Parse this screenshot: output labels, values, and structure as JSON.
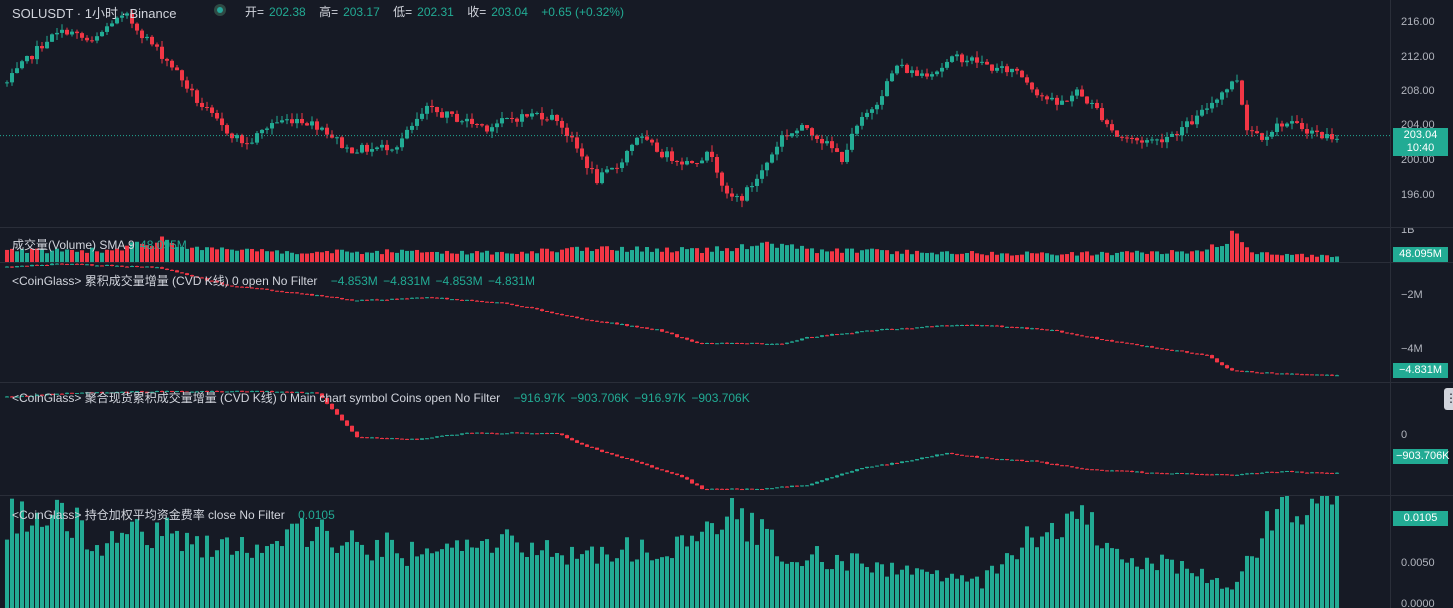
{
  "main": {
    "symbol_title": "SOLUSDT · 1小时 · Binance",
    "ohlc": {
      "open_label": "开=",
      "open": "202.38",
      "high_label": "高=",
      "high": "203.17",
      "low_label": "低=",
      "low": "202.31",
      "close_label": "收=",
      "close": "203.04",
      "change": "+0.65 (+0.32%)"
    },
    "price_ticks": [
      "216.00",
      "212.00",
      "208.00",
      "204.00",
      "200.00",
      "196.00"
    ],
    "last_price_tag": "203.04",
    "countdown_tag": "10:40"
  },
  "volume": {
    "title": "成交量(Volume) SMA 9",
    "value": "48.095M",
    "axis_tick": "1B",
    "tag": "48.095M"
  },
  "cvd_futures": {
    "title": "<CoinGlass> 累积成交量增量 (CVD K线) 0 open No Filter",
    "values": [
      "−4.853M",
      "−4.831M",
      "−4.853M",
      "−4.831M"
    ],
    "axis_ticks": [
      "−2M",
      "−4M"
    ],
    "tag": "−4.831M"
  },
  "cvd_spot": {
    "title": "<CoinGlass> 聚合现货累积成交量增量 (CVD K线) 0 Main chart symbol Coins open No Filter",
    "values": [
      "−916.97K",
      "−903.706K",
      "−916.97K",
      "−903.706K"
    ],
    "axis_ticks": [
      "0"
    ],
    "tag": "−903.706K"
  },
  "funding": {
    "title": "<CoinGlass> 持仓加权平均资金费率 close No Filter",
    "value": "0.0105",
    "axis_ticks": [
      "0.0050",
      "0.0000"
    ],
    "tag": "0.0105"
  },
  "colors": {
    "up": "#22AB94",
    "down": "#F23645",
    "background": "#161A25"
  },
  "chart_data": [
    {
      "type": "candlestick",
      "title": "SOLUSDT · 1小时 · Binance",
      "ylim": [
        193,
        218
      ],
      "ticks": [
        216,
        212,
        208,
        204,
        200,
        196
      ],
      "last": 203.04,
      "anchors": [
        [
          0,
          209
        ],
        [
          3,
          211
        ],
        [
          8,
          214
        ],
        [
          12,
          215
        ],
        [
          17,
          213.5
        ],
        [
          21,
          216
        ],
        [
          24,
          216.5
        ],
        [
          28,
          214
        ],
        [
          33,
          211
        ],
        [
          38,
          207
        ],
        [
          43,
          204
        ],
        [
          48,
          202
        ],
        [
          53,
          204.5
        ],
        [
          58,
          205
        ],
        [
          63,
          204
        ],
        [
          68,
          201.5
        ],
        [
          73,
          201.5
        ],
        [
          78,
          202
        ],
        [
          84,
          206
        ],
        [
          90,
          205
        ],
        [
          96,
          204
        ],
        [
          101,
          205
        ],
        [
          106,
          205.5
        ],
        [
          110,
          205
        ],
        [
          114,
          201.5
        ],
        [
          118,
          198
        ],
        [
          122,
          199.5
        ],
        [
          126,
          203
        ],
        [
          131,
          201
        ],
        [
          136,
          200
        ],
        [
          141,
          201
        ],
        [
          144,
          196
        ],
        [
          147,
          196
        ],
        [
          151,
          199
        ],
        [
          155,
          203
        ],
        [
          160,
          204
        ],
        [
          164,
          202
        ],
        [
          167,
          200.5
        ],
        [
          170,
          204
        ],
        [
          174,
          207
        ],
        [
          178,
          211
        ],
        [
          182,
          210
        ],
        [
          186,
          210.5
        ],
        [
          190,
          212
        ],
        [
          194,
          211.5
        ],
        [
          198,
          210.5
        ],
        [
          202,
          210.5
        ],
        [
          206,
          208
        ],
        [
          210,
          206.5
        ],
        [
          214,
          208
        ],
        [
          218,
          206
        ],
        [
          222,
          203
        ],
        [
          226,
          202.5
        ],
        [
          230,
          202.5
        ],
        [
          234,
          203.5
        ],
        [
          238,
          205
        ],
        [
          242,
          207.5
        ],
        [
          246,
          209.5
        ],
        [
          248,
          204
        ],
        [
          251,
          203
        ],
        [
          255,
          204.5
        ],
        [
          259,
          204
        ],
        [
          263,
          203
        ],
        [
          266,
          203
        ]
      ]
    },
    {
      "type": "bar",
      "title": "成交量(Volume) SMA 9",
      "units": "relative",
      "anchors": [
        [
          0,
          0.33
        ],
        [
          20,
          0.36
        ],
        [
          32,
          0.65
        ],
        [
          40,
          0.35
        ],
        [
          60,
          0.3
        ],
        [
          80,
          0.3
        ],
        [
          100,
          0.27
        ],
        [
          115,
          0.38
        ],
        [
          140,
          0.35
        ],
        [
          155,
          0.55
        ],
        [
          160,
          0.35
        ],
        [
          180,
          0.3
        ],
        [
          200,
          0.25
        ],
        [
          220,
          0.25
        ],
        [
          240,
          0.32
        ],
        [
          245,
          0.8
        ],
        [
          250,
          0.25
        ],
        [
          266,
          0.15
        ]
      ]
    },
    {
      "type": "candlestick",
      "title": "<CoinGlass> 累积成交量增量 (CVD K线) 0 open No Filter",
      "ylim": [
        -5.0,
        -1.3
      ],
      "ticks": [
        -2,
        -4
      ],
      "last": -4.831,
      "anchors": [
        [
          0,
          -1.3
        ],
        [
          10,
          -1.2
        ],
        [
          30,
          -1.3
        ],
        [
          44,
          -1.9
        ],
        [
          55,
          -2.1
        ],
        [
          70,
          -2.4
        ],
        [
          85,
          -2.3
        ],
        [
          100,
          -2.5
        ],
        [
          115,
          -3.0
        ],
        [
          130,
          -3.35
        ],
        [
          138,
          -3.8
        ],
        [
          155,
          -3.8
        ],
        [
          160,
          -3.6
        ],
        [
          175,
          -3.35
        ],
        [
          190,
          -3.2
        ],
        [
          200,
          -3.25
        ],
        [
          210,
          -3.4
        ],
        [
          220,
          -3.7
        ],
        [
          240,
          -4.2
        ],
        [
          245,
          -4.7
        ],
        [
          255,
          -4.8
        ],
        [
          266,
          -4.831
        ]
      ]
    },
    {
      "type": "candlestick",
      "title": "<CoinGlass> 聚合现货累积成交量增量 (CVD K线) 0 Main chart symbol Coins open No Filter",
      "ylim": [
        -1.15,
        0.1
      ],
      "ticks": [
        0
      ],
      "last": -0.903706,
      "anchors": [
        [
          0,
          0.05
        ],
        [
          12,
          0.1
        ],
        [
          30,
          0.12
        ],
        [
          52,
          0.12
        ],
        [
          62,
          0.1
        ],
        [
          70,
          -0.45
        ],
        [
          82,
          -0.48
        ],
        [
          92,
          -0.4
        ],
        [
          110,
          -0.4
        ],
        [
          115,
          -0.55
        ],
        [
          125,
          -0.75
        ],
        [
          135,
          -0.95
        ],
        [
          139,
          -1.1
        ],
        [
          150,
          -1.1
        ],
        [
          160,
          -1.05
        ],
        [
          170,
          -0.85
        ],
        [
          180,
          -0.75
        ],
        [
          188,
          -0.65
        ],
        [
          196,
          -0.72
        ],
        [
          205,
          -0.75
        ],
        [
          215,
          -0.85
        ],
        [
          230,
          -0.9
        ],
        [
          245,
          -0.92
        ],
        [
          255,
          -0.88
        ],
        [
          266,
          -0.903706
        ]
      ]
    },
    {
      "type": "bar",
      "title": "<CoinGlass> 持仓加权平均资金费率 close No Filter",
      "ylim": [
        0,
        0.0122
      ],
      "ticks": [
        0.005,
        0
      ],
      "last": 0.0105,
      "anchors": [
        [
          0,
          0.0095
        ],
        [
          10,
          0.0098
        ],
        [
          20,
          0.0072
        ],
        [
          30,
          0.0085
        ],
        [
          40,
          0.007
        ],
        [
          50,
          0.0062
        ],
        [
          58,
          0.009
        ],
        [
          68,
          0.0068
        ],
        [
          76,
          0.0066
        ],
        [
          85,
          0.0055
        ],
        [
          95,
          0.0075
        ],
        [
          105,
          0.0065
        ],
        [
          115,
          0.006
        ],
        [
          125,
          0.0062
        ],
        [
          135,
          0.0065
        ],
        [
          145,
          0.0098
        ],
        [
          155,
          0.0065
        ],
        [
          165,
          0.005
        ],
        [
          175,
          0.0045
        ],
        [
          185,
          0.0035
        ],
        [
          195,
          0.0028
        ],
        [
          205,
          0.0078
        ],
        [
          215,
          0.0095
        ],
        [
          225,
          0.0055
        ],
        [
          235,
          0.0045
        ],
        [
          245,
          0.002
        ],
        [
          252,
          0.0085
        ],
        [
          256,
          0.0118
        ],
        [
          266,
          0.0105
        ]
      ]
    }
  ]
}
